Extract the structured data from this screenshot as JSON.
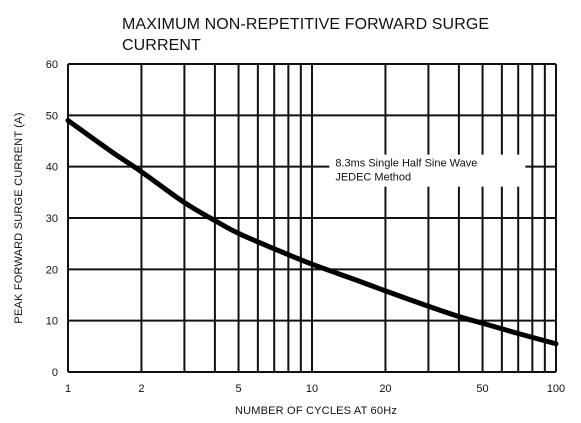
{
  "chart_data": {
    "type": "line",
    "title": "MAXIMUM NON-REPETITIVE FORWARD SURGE CURRENT",
    "xlabel": "NUMBER OF CYCLES AT 60Hz",
    "ylabel": "PEAK FORWARD SURGE CURRENT (A)",
    "x_scale": "log",
    "xlim": [
      1,
      100
    ],
    "ylim": [
      0,
      60
    ],
    "x_ticks": [
      1,
      2,
      5,
      10,
      20,
      50,
      100
    ],
    "x_tick_labels": [
      "1",
      "2",
      "5",
      "10",
      "20",
      "50",
      "100"
    ],
    "x_gridlines": [
      1,
      2,
      3,
      4,
      5,
      6,
      7,
      8,
      9,
      10,
      20,
      30,
      40,
      50,
      60,
      70,
      80,
      90,
      100
    ],
    "y_ticks": [
      0,
      10,
      20,
      30,
      40,
      50,
      60
    ],
    "y_tick_labels": [
      "0",
      "10",
      "20",
      "30",
      "40",
      "50",
      "60"
    ],
    "grid": true,
    "legend": "none",
    "annotation": {
      "lines": [
        "8.3ms Single Half Sine Wave",
        "JEDEC Method"
      ],
      "anchor": {
        "x": 12,
        "y": 40
      }
    },
    "series": [
      {
        "x": [
          1,
          1.5,
          2,
          3,
          4,
          5,
          7,
          10,
          15,
          20,
          30,
          40,
          50,
          70,
          100
        ],
        "y": [
          49,
          43,
          39,
          33,
          29.5,
          27,
          24,
          21,
          18,
          15.8,
          12.8,
          10.8,
          9.5,
          7.5,
          5.5
        ]
      }
    ]
  }
}
